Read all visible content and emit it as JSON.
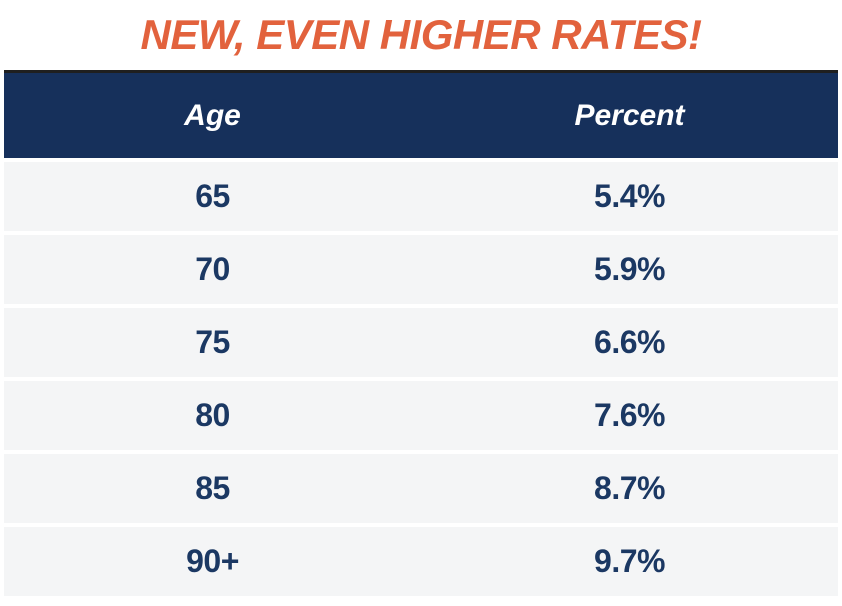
{
  "title": {
    "text": "NEW, EVEN HIGHER RATES!"
  },
  "table": {
    "header": {
      "age_label": "Age",
      "percent_label": "Percent"
    },
    "rows": [
      {
        "age": "65",
        "percent": "5.4%"
      },
      {
        "age": "70",
        "percent": "5.9%"
      },
      {
        "age": "75",
        "percent": "6.6%"
      },
      {
        "age": "80",
        "percent": "7.6%"
      },
      {
        "age": "85",
        "percent": "8.7%"
      },
      {
        "age": "90+",
        "percent": "9.7%"
      }
    ]
  },
  "colors": {
    "title_orange": "#E2623D",
    "header_bg": "#16305B",
    "header_text": "#FFFFFF",
    "header_top_border": "#1F1F1F",
    "row_bg": "#F4F5F6",
    "cell_text": "#1B3863",
    "page_bg": "#FFFFFF"
  },
  "chart_data": {
    "type": "table",
    "title": "NEW, EVEN HIGHER RATES!",
    "columns": [
      "Age",
      "Percent"
    ],
    "rows": [
      [
        "65",
        "5.4%"
      ],
      [
        "70",
        "5.9%"
      ],
      [
        "75",
        "6.6%"
      ],
      [
        "80",
        "7.6%"
      ],
      [
        "85",
        "8.7%"
      ],
      [
        "90+",
        "9.7%"
      ]
    ],
    "ages": [
      65,
      70,
      75,
      80,
      85,
      90
    ],
    "percent_values": [
      5.4,
      5.9,
      6.6,
      7.6,
      8.7,
      9.7
    ]
  }
}
